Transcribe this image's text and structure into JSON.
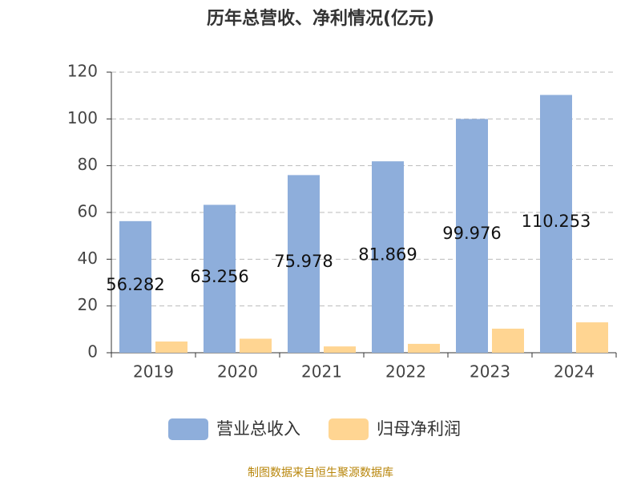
{
  "chart_data": {
    "type": "bar",
    "title": "历年总营收、净利情况(亿元)",
    "categories": [
      "2019",
      "2020",
      "2021",
      "2022",
      "2023",
      "2024"
    ],
    "series": [
      {
        "name": "营业总收入",
        "color": "#8eaedb",
        "values": [
          56.282,
          63.256,
          75.978,
          81.869,
          99.976,
          110.253
        ]
      },
      {
        "name": "归母净利润",
        "color": "#ffd592",
        "values": [
          4.8,
          6.0,
          2.7,
          3.8,
          10.3,
          13.0
        ]
      }
    ],
    "ylim": [
      0,
      120
    ],
    "yticks": [
      0,
      20,
      40,
      60,
      80,
      100,
      120
    ],
    "grid": true,
    "source": "制图数据来自恒生聚源数据库"
  }
}
